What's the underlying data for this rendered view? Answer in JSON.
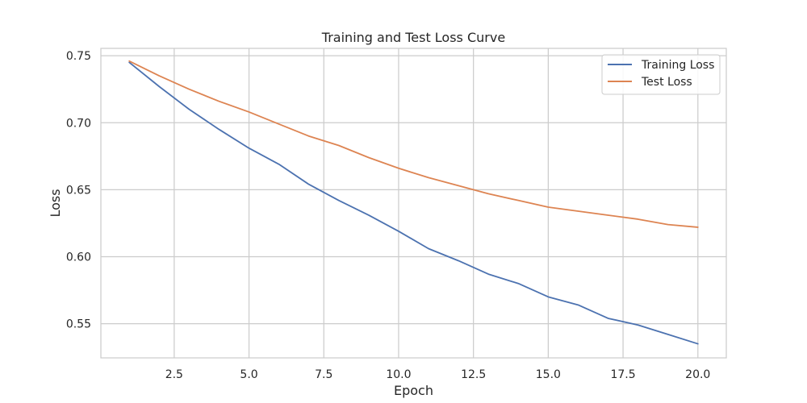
{
  "chart_data": {
    "type": "line",
    "title": "Training and Test Loss Curve",
    "xlabel": "Epoch",
    "ylabel": "Loss",
    "x": [
      1,
      2,
      3,
      4,
      5,
      6,
      7,
      8,
      9,
      10,
      11,
      12,
      13,
      14,
      15,
      16,
      17,
      18,
      19,
      20
    ],
    "series": [
      {
        "name": "Training Loss",
        "color": "#4c72b0",
        "values": [
          0.745,
          0.727,
          0.71,
          0.695,
          0.681,
          0.669,
          0.654,
          0.642,
          0.631,
          0.619,
          0.606,
          0.597,
          0.587,
          0.58,
          0.57,
          0.564,
          0.554,
          0.549,
          0.542,
          0.535
        ]
      },
      {
        "name": "Test Loss",
        "color": "#dd8452",
        "values": [
          0.746,
          0.735,
          0.725,
          0.716,
          0.708,
          0.699,
          0.69,
          0.683,
          0.674,
          0.666,
          0.659,
          0.653,
          0.647,
          0.642,
          0.637,
          0.634,
          0.631,
          0.628,
          0.624,
          0.622
        ]
      }
    ],
    "xlim": [
      0.05,
      20.95
    ],
    "ylim": [
      0.5245,
      0.7555
    ],
    "xticks": [
      2.5,
      5.0,
      7.5,
      10.0,
      12.5,
      15.0,
      17.5,
      20.0
    ],
    "xtick_labels": [
      "2.5",
      "5.0",
      "7.5",
      "10.0",
      "12.5",
      "15.0",
      "17.5",
      "20.0"
    ],
    "yticks": [
      0.55,
      0.6,
      0.65,
      0.7,
      0.75
    ],
    "ytick_labels": [
      "0.55",
      "0.60",
      "0.65",
      "0.70",
      "0.75"
    ],
    "grid": true,
    "legend_position": "top-right"
  }
}
